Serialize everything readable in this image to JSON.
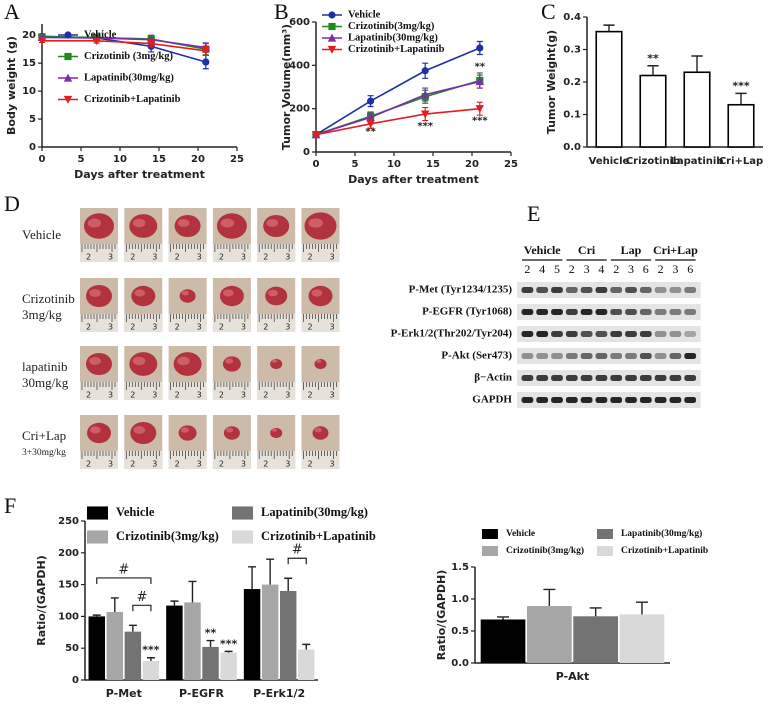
{
  "panel_labels": [
    "A",
    "B",
    "C",
    "D",
    "E",
    "F"
  ],
  "chart_data": [
    {
      "type": "line",
      "x_label": "Days after treatment",
      "y_label": "Body weight (g)",
      "x": [
        0,
        7,
        14,
        21
      ],
      "xlim": [
        0,
        25
      ],
      "xticks": [
        0,
        5,
        10,
        15,
        20,
        25
      ],
      "ylim": [
        0,
        22
      ],
      "yticks": [
        0,
        5,
        10,
        15,
        20
      ],
      "series": [
        {
          "name": "Vehicle",
          "color": "#1f2fa8",
          "marker": "circle",
          "values": [
            19.8,
            19.5,
            18,
            15.2
          ],
          "errors": [
            0.3,
            0.5,
            1,
            1.2
          ]
        },
        {
          "name": "Crizotinib (3mg/kg)",
          "color": "#1e8a1e",
          "marker": "square",
          "values": [
            19.7,
            19.6,
            19.3,
            17.5
          ],
          "errors": [
            0.3,
            0.4,
            0.6,
            1
          ]
        },
        {
          "name": "Lapatinib(30mg/kg)",
          "color": "#7b2fa8",
          "marker": "triangle",
          "values": [
            19.6,
            19.5,
            19.2,
            17.8
          ],
          "errors": [
            0.3,
            0.5,
            0.8,
            0.8
          ]
        },
        {
          "name": "Crizotinib+Lapatinib",
          "color": "#e02020",
          "marker": "triangle-down",
          "values": [
            19,
            19,
            18.5,
            17.2
          ],
          "errors": [
            0.3,
            0.4,
            0.6,
            0.8
          ]
        }
      ]
    },
    {
      "type": "line",
      "x_label": "Days after treatment",
      "y_label": "Tumor Volume(mm³)",
      "x": [
        0,
        7,
        14,
        21
      ],
      "xlim": [
        0,
        25
      ],
      "xticks": [
        0,
        5,
        10,
        15,
        20,
        25
      ],
      "ylim": [
        0,
        600
      ],
      "yticks": [
        0,
        200,
        400,
        600
      ],
      "series": [
        {
          "name": "Vehicle",
          "color": "#1f2fa8",
          "marker": "circle",
          "values": [
            80,
            235,
            375,
            480
          ],
          "errors": [
            8,
            25,
            35,
            30
          ]
        },
        {
          "name": "Crizotinib(3mg/kg)",
          "color": "#1e8a1e",
          "marker": "square",
          "values": [
            80,
            165,
            255,
            330
          ],
          "errors": [
            6,
            20,
            30,
            35
          ]
        },
        {
          "name": "Lapatinib(30mg/kg)",
          "color": "#7b2fa8",
          "marker": "triangle",
          "values": [
            80,
            160,
            265,
            325
          ],
          "errors": [
            6,
            20,
            30,
            30
          ]
        },
        {
          "name": "Crizotinib+Lapatinib",
          "color": "#e02020",
          "marker": "triangle-down",
          "values": [
            80,
            130,
            175,
            200
          ],
          "errors": [
            5,
            20,
            30,
            30
          ]
        }
      ],
      "annotations": [
        {
          "text": "**",
          "x": 7,
          "y": 95
        },
        {
          "text": "***",
          "x": 14,
          "y": 120
        },
        {
          "text": "***",
          "x": 21,
          "y": 145
        },
        {
          "text": "**",
          "x": 21,
          "y": 395
        }
      ]
    },
    {
      "type": "bar",
      "y_label": "Tumor Weight(g)",
      "color": "#ffffff",
      "edgecolor": "#000000",
      "categories": [
        "Vehicle",
        "Crizotinib",
        "Lapatinib",
        "Cri+Lap"
      ],
      "values": [
        0.355,
        0.22,
        0.23,
        0.13
      ],
      "errors": [
        0.02,
        0.03,
        0.05,
        0.035
      ],
      "annotations": [
        null,
        "**",
        null,
        "***"
      ],
      "ylim": [
        0,
        0.4
      ],
      "yticks": [
        {
          "value": 0,
          "label": "0.0"
        },
        0.1,
        0.2,
        0.3,
        0.4
      ]
    },
    {
      "type": "bar",
      "y_label": "Ratio/(GAPDH)",
      "categories": [
        "P-Met",
        "P-EGFR",
        "P-Erk1/2"
      ],
      "ylim": [
        0,
        250
      ],
      "yticks": [
        0,
        50,
        100,
        150,
        200,
        250
      ],
      "series": [
        {
          "name": "Vehicle",
          "color": "#000000",
          "values": [
            100,
            117,
            143
          ],
          "errors": [
            2,
            7,
            35
          ]
        },
        {
          "name": "Crizotinib(3mg/kg)",
          "color": "#a6a6a6",
          "values": [
            107,
            122,
            150
          ],
          "errors": [
            22,
            33,
            40
          ]
        },
        {
          "name": "Lapatinib(30mg/kg)",
          "color": "#737373",
          "values": [
            76,
            52,
            140
          ],
          "errors": [
            10,
            10,
            20
          ],
          "annotations": [
            null,
            "**",
            null
          ]
        },
        {
          "name": "Crizotinib+Lapatinib",
          "color": "#d9d9d9",
          "values": [
            30,
            43,
            48
          ],
          "errors": [
            5,
            2,
            8
          ],
          "annotations": [
            "***",
            "***",
            null
          ]
        }
      ],
      "brackets": [
        {
          "label": "#",
          "category": 0,
          "series": [
            0,
            3
          ]
        },
        {
          "label": "#",
          "category": 0,
          "series": [
            2,
            3
          ]
        },
        {
          "label": "#",
          "category": 2,
          "series": [
            2,
            3
          ]
        }
      ]
    },
    {
      "type": "bar",
      "y_label": "Ratio/(GAPDH)",
      "categories": [
        "P-Akt"
      ],
      "ylim": [
        0,
        1.5
      ],
      "yticks": [
        {
          "value": 0,
          "label": "0.0"
        },
        0.5,
        {
          "value": 1,
          "label": "1.0"
        },
        1.5
      ],
      "series": [
        {
          "name": "Vehicle",
          "color": "#000000",
          "values": [
            0.68
          ],
          "errors": [
            0.04
          ]
        },
        {
          "name": "Crizotinib(3mg/kg)",
          "color": "#a6a6a6",
          "values": [
            0.89
          ],
          "errors": [
            0.26
          ]
        },
        {
          "name": "Lapatinib(30mg/kg)",
          "color": "#737373",
          "values": [
            0.73
          ],
          "errors": [
            0.13
          ]
        },
        {
          "name": "Crizotinib+Lapatinib",
          "color": "#d9d9d9",
          "values": [
            0.76
          ],
          "errors": [
            0.19
          ]
        }
      ]
    }
  ],
  "photos": {
    "rows": [
      [
        "Vehicle"
      ],
      [
        "Crizotinib",
        "3mg/kg"
      ],
      [
        "lapatinib",
        "30mg/kg"
      ],
      [
        "Cri+Lap",
        "3+30mg/kg"
      ]
    ],
    "ruler_labels": [
      "2",
      "3"
    ]
  },
  "blot": {
    "groups": [
      {
        "name": "Vehicle",
        "lanes": [
          "2",
          "4",
          "5"
        ]
      },
      {
        "name": "Cri",
        "lanes": [
          "2",
          "3",
          "4"
        ]
      },
      {
        "name": "Lap",
        "lanes": [
          "2",
          "3",
          "6"
        ]
      },
      {
        "name": "Cri+Lap",
        "lanes": [
          "2",
          "3",
          "6"
        ]
      }
    ],
    "rows": [
      "P-Met (Tyr1234/1235)",
      "P-EGFR (Tyr1068)",
      "P-Erk1/2(Thr202/Tyr204)",
      "P-Akt (Ser473)",
      "β−Actin",
      "GAPDH"
    ]
  }
}
